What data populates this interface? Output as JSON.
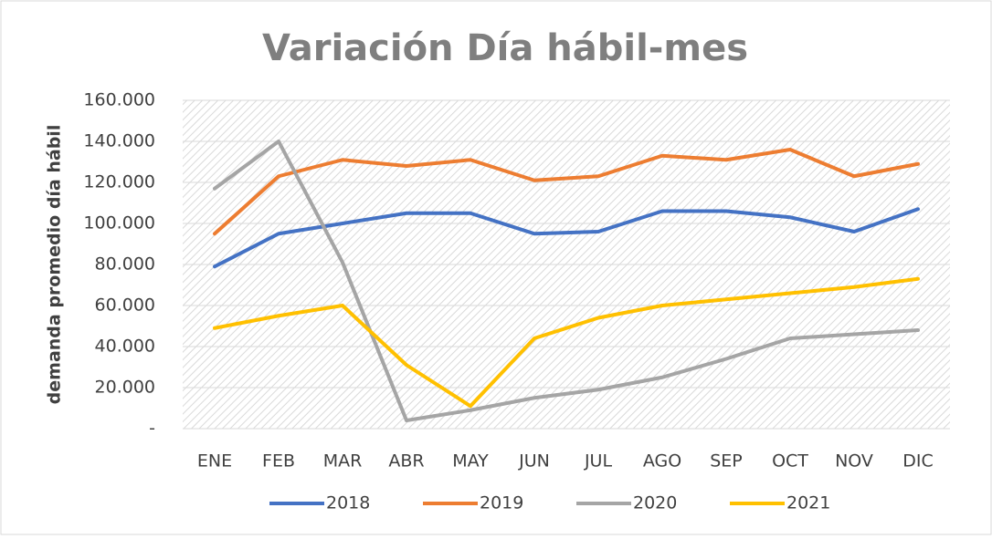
{
  "chart_data": {
    "type": "line",
    "title": "Variación Día hábil-mes",
    "ylabel": "demanda promedio día hábil",
    "categories": [
      "ENE",
      "FEB",
      "MAR",
      "ABR",
      "MAY",
      "JUN",
      "JUL",
      "AGO",
      "SEP",
      "OCT",
      "NOV",
      "DIC"
    ],
    "series": [
      {
        "name": "2018",
        "color": "#4472c4",
        "values": [
          79000,
          95000,
          100000,
          105000,
          105000,
          95000,
          96000,
          106000,
          106000,
          103000,
          96000,
          107000
        ]
      },
      {
        "name": "2019",
        "color": "#ed7d31",
        "values": [
          95000,
          123000,
          131000,
          128000,
          131000,
          121000,
          123000,
          133000,
          131000,
          136000,
          123000,
          129000
        ]
      },
      {
        "name": "2020",
        "color": "#a5a5a5",
        "values": [
          117000,
          140000,
          81000,
          4000,
          9000,
          15000,
          19000,
          25000,
          34000,
          44000,
          46000,
          48000
        ]
      },
      {
        "name": "2021",
        "color": "#ffc000",
        "values": [
          49000,
          55000,
          60000,
          31000,
          11000,
          44000,
          54000,
          60000,
          63000,
          66000,
          69000,
          73000
        ]
      }
    ],
    "ylim": [
      0,
      160000
    ],
    "yticks": [
      {
        "value": 0,
        "label": "-"
      },
      {
        "value": 20000,
        "label": "20.000"
      },
      {
        "value": 40000,
        "label": "40.000"
      },
      {
        "value": 60000,
        "label": "60.000"
      },
      {
        "value": 80000,
        "label": "80.000"
      },
      {
        "value": 100000,
        "label": "100.000"
      },
      {
        "value": 120000,
        "label": "120.000"
      },
      {
        "value": 140000,
        "label": "140.000"
      },
      {
        "value": 160000,
        "label": "160.000"
      }
    ],
    "grid": true,
    "legend": "bottom"
  }
}
